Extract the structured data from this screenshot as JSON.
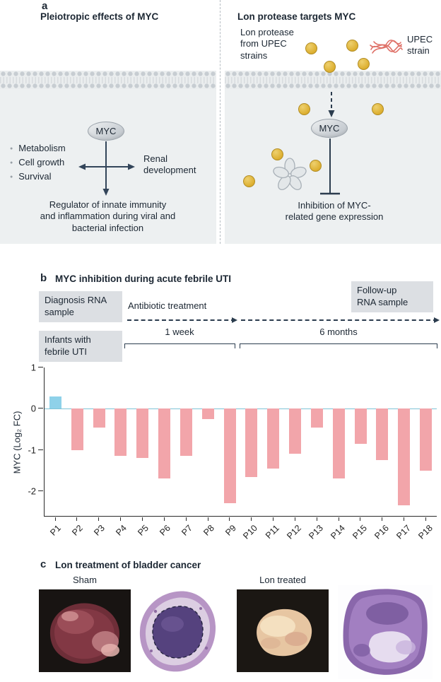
{
  "panel_a": {
    "label": "a",
    "left": {
      "title": "Pleiotropic effects of MYC",
      "myc": "MYC",
      "bullets": [
        "Metabolism",
        "Cell growth",
        "Survival"
      ],
      "renal": "Renal\ndevelopment",
      "bottom_text": "Regulator of innate immunity\nand inflammation during viral and\nbacterial infection"
    },
    "right": {
      "title": "Lon protease targets MYC",
      "lon_source": "Lon protease\nfrom UPEC\nstrains",
      "upec": "UPEC\nstrain",
      "myc": "MYC",
      "inhibition": "Inhibition of MYC-\nrelated gene expression"
    }
  },
  "panel_b": {
    "label": "b",
    "title": "MYC inhibition during acute febrile UTI",
    "diagnosis_box": "Diagnosis RNA\nsample",
    "antibiotic_label": "Antibiotic treatment",
    "followup_box": "Follow-up\nRNA sample",
    "week_label": "1 week",
    "months_label": "6 months",
    "infants_box": "Infants with\nfebrile UTI",
    "chart_data": {
      "type": "bar",
      "title": "MYC inhibition during acute febrile UTI",
      "ylabel": "MYC (Log₂ FC)",
      "xlabel": "",
      "categories": [
        "P1",
        "P2",
        "P3",
        "P4",
        "P5",
        "P6",
        "P7",
        "P8",
        "P9",
        "P10",
        "P11",
        "P12",
        "P13",
        "P14",
        "P15",
        "P16",
        "P17",
        "P18"
      ],
      "values": [
        0.3,
        -1.0,
        -0.45,
        -1.15,
        -1.2,
        -1.7,
        -1.15,
        -0.25,
        -2.3,
        -1.65,
        -1.45,
        -1.1,
        -0.45,
        -1.7,
        -0.85,
        -1.25,
        -2.35,
        -1.5
      ],
      "ylim": [
        -2.6,
        1
      ],
      "yticks": [
        1,
        0,
        -1,
        -2
      ],
      "grid": false,
      "legend_position": "none"
    }
  },
  "panel_c": {
    "label": "c",
    "title": "Lon treatment of bladder cancer",
    "sham_label": "Sham",
    "lon_treated_label": "Lon treated"
  },
  "colors": {
    "bar_positive": "#8ed1e9",
    "bar_negative": "#f2a5aa",
    "zero_line": "#7fc3d6",
    "box_bg": "#dcdfe3",
    "panel_bg": "#edf0f1",
    "lon_circle": "#dfb33a",
    "arrow_dark": "#2b3c4e",
    "bacteria_red": "#df7168"
  }
}
